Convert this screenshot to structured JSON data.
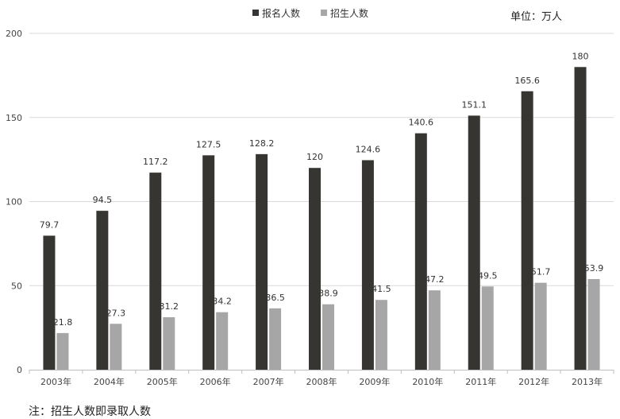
{
  "unit_label": "单位：万人",
  "note": "注：招生人数即录取人数",
  "chart_data": {
    "type": "bar",
    "title": "",
    "xlabel": "",
    "ylabel": "",
    "ylim": [
      0,
      200
    ],
    "yticks": [
      0,
      50,
      100,
      150,
      200
    ],
    "grid": true,
    "legend_position": "top",
    "categories": [
      "2003年",
      "2004年",
      "2005年",
      "2006年",
      "2007年",
      "2008年",
      "2009年",
      "2010年",
      "2011年",
      "2012年",
      "2013年"
    ],
    "series": [
      {
        "name": "报名人数",
        "color": "#363532",
        "values": [
          79.7,
          94.5,
          117.2,
          127.5,
          128.2,
          120,
          124.6,
          140.6,
          151.1,
          165.6,
          180
        ],
        "labels": [
          "79.7",
          "94.5",
          "117.2",
          "127.5",
          "128.2",
          "120",
          "124.6",
          "140.6",
          "151.1",
          "165.6",
          "180"
        ]
      },
      {
        "name": "招生人数",
        "color": "#a6a6a6",
        "values": [
          21.8,
          27.3,
          31.2,
          34.2,
          36.5,
          38.9,
          41.5,
          47.2,
          49.5,
          51.7,
          53.9
        ],
        "labels": [
          "21.8",
          "27.3",
          "31.2",
          "34.2",
          "36.5",
          "38.9",
          "41.5",
          "47.2",
          "49.5",
          "51.7",
          "53.9"
        ]
      }
    ]
  }
}
